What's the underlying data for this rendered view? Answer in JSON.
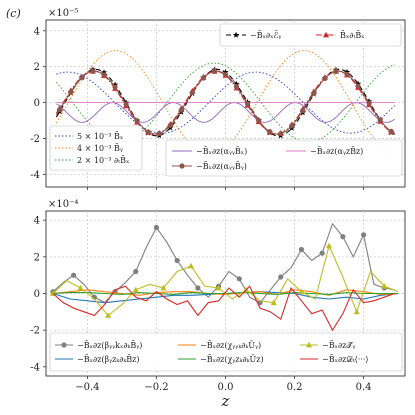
{
  "panel_tag": "(c)",
  "chart_data": [
    {
      "type": "line",
      "scale_label": "×10⁻⁵",
      "xlim": [
        -0.52,
        0.52
      ],
      "ylim": [
        -4.7,
        4.6
      ],
      "yticks": [
        -4,
        -2,
        0,
        2,
        4
      ],
      "xticks": [
        -0.4,
        -0.2,
        0.0,
        0.2,
        0.4
      ],
      "grid": true,
      "legend_top": "top-right",
      "legend_bottom_left": "bottom-left",
      "legend_bottom_right": "bottom-right",
      "series": [
        {
          "name": "−B̄ₓ∂ₓℰ̄ᵧ",
          "color": "#000000",
          "dash": "5,3",
          "marker": "star",
          "legend": "top",
          "amp": 1.85,
          "k": 17.8,
          "phase": -0.45
        },
        {
          "name": "B̄ₓ∂ₜB̄ₓ",
          "color": "#d62728",
          "dash": "6,2,1.5,2",
          "marker": "tri",
          "legend": "top",
          "amp": 1.75,
          "k": 17.8,
          "phase": -0.35
        },
        {
          "name": "5 × 10⁻³ B̄ₓ",
          "color": "#1f3fd6",
          "dash": "1.5,2",
          "marker": "none",
          "legend": "bl",
          "amp": 1.7,
          "k": 11.5,
          "phase": 1.2
        },
        {
          "name": "4 × 10⁻³ B̄ᵧ",
          "color": "#ff7f0e",
          "dash": "1.5,2",
          "marker": "none",
          "legend": "bl",
          "amp": 2.9,
          "k": 11.5,
          "phase": -0.4
        },
        {
          "name": "2 × 10⁻³ ∂ₜB̄ₓ",
          "color": "#2ca02c",
          "dash": "1.5,2",
          "marker": "none",
          "legend": "bl",
          "amp": 2.2,
          "k": 11.5,
          "phase": 2.6
        },
        {
          "name": "−B̄ₓ∂z(αᵧᵧB̄ₓ)",
          "color": "#9467bd",
          "dash": "",
          "marker": "none",
          "legend": "br",
          "amp": 1.0,
          "k": 35.6,
          "phase": 0.5
        },
        {
          "name": "−B̄ₓ∂z(αᵧzB̄z)",
          "color": "#e377c2",
          "dash": "",
          "marker": "none",
          "legend": "br",
          "amp": 0.0,
          "k": 1.0,
          "phase": 0.0
        },
        {
          "name": "−B̄ₓ∂z(αᵧᵧB̄ᵧ)",
          "color": "#8c564b",
          "dash": "",
          "marker": "dot",
          "legend": "br",
          "amp": 1.75,
          "k": 17.8,
          "phase": -0.4
        }
      ]
    },
    {
      "type": "line",
      "scale_label": "×10⁻⁴",
      "xlim": [
        -0.52,
        0.52
      ],
      "ylim": [
        -4.5,
        4.5
      ],
      "yticks": [
        -4,
        -2,
        0,
        2,
        4
      ],
      "xticks": [
        -0.4,
        -0.2,
        0.0,
        0.2,
        0.4
      ],
      "xtick_labels": [
        "−0.4",
        "−0.2",
        "0.0",
        "0.2",
        "0.4"
      ],
      "xlabel": "z",
      "grid": true,
      "legend": "bottom",
      "series": [
        {
          "name": "−B̄ₓ∂z(βᵧᵧkₓ∂ₖB̄ᵧ)",
          "color": "#7f7f7f",
          "marker": "dot",
          "x": [
            -0.5,
            -0.47,
            -0.44,
            -0.41,
            -0.38,
            -0.35,
            -0.32,
            -0.29,
            -0.26,
            -0.23,
            -0.2,
            -0.17,
            -0.14,
            -0.11,
            -0.08,
            -0.05,
            -0.02,
            0.01,
            0.04,
            0.07,
            0.1,
            0.13,
            0.16,
            0.19,
            0.22,
            0.25,
            0.28,
            0.31,
            0.34,
            0.37,
            0.4,
            0.43,
            0.46,
            0.49
          ],
          "y": [
            0.1,
            0.6,
            1.0,
            0.5,
            -0.2,
            -0.5,
            0.1,
            0.6,
            1.2,
            2.5,
            3.6,
            2.8,
            1.8,
            1.0,
            0.3,
            -0.2,
            0.4,
            1.2,
            0.8,
            -0.2,
            -0.5,
            0.2,
            0.9,
            1.4,
            2.4,
            1.8,
            2.2,
            3.8,
            3.1,
            2.0,
            3.2,
            0.5,
            0.3,
            0.2
          ]
        },
        {
          "name": "−B̄ₓ∂z(βᵧzₖ∂ₖB̄z)",
          "color": "#1f77b4",
          "marker": "none",
          "x": [
            -0.5,
            -0.45,
            -0.4,
            -0.35,
            -0.3,
            -0.25,
            -0.2,
            -0.15,
            -0.1,
            -0.05,
            0.0,
            0.05,
            0.1,
            0.15,
            0.2,
            0.25,
            0.3,
            0.35,
            0.4,
            0.45,
            0.5
          ],
          "y": [
            0.0,
            -0.3,
            -0.4,
            -0.5,
            -0.4,
            -0.3,
            -0.2,
            -0.1,
            -0.1,
            -0.05,
            0.0,
            0.05,
            0.1,
            0.05,
            0.0,
            -0.2,
            -0.3,
            -0.2,
            -0.3,
            -0.1,
            0.0
          ]
        },
        {
          "name": "−B̄ₓ∂z(χᵧᵧₖ∂ₖŪᵧ)",
          "color": "#ff7f0e",
          "marker": "none",
          "x": [
            -0.5,
            -0.45,
            -0.4,
            -0.35,
            -0.3,
            -0.25,
            -0.2,
            -0.15,
            -0.1,
            -0.05,
            0.0,
            0.05,
            0.1,
            0.15,
            0.2,
            0.25,
            0.3,
            0.35,
            0.4,
            0.45,
            0.5
          ],
          "y": [
            0.0,
            0.1,
            0.2,
            0.1,
            0.0,
            -0.1,
            0.05,
            0.1,
            0.1,
            0.0,
            -0.05,
            0.05,
            0.1,
            -0.05,
            0.2,
            0.1,
            -0.1,
            0.2,
            0.1,
            -0.05,
            0.0
          ]
        },
        {
          "name": "−B̄ₓ∂z(χᵧzₖ∂ₖŪz)",
          "color": "#2ca02c",
          "marker": "none",
          "x": [
            -0.5,
            -0.45,
            -0.4,
            -0.35,
            -0.3,
            -0.25,
            -0.2,
            -0.15,
            -0.1,
            -0.05,
            0.0,
            0.05,
            0.1,
            0.15,
            0.2,
            0.25,
            0.3,
            0.35,
            0.4,
            0.45,
            0.5
          ],
          "y": [
            0.0,
            0.05,
            0.05,
            0.0,
            -0.05,
            0.05,
            0.0,
            -0.05,
            0.05,
            0.0,
            0.0,
            0.05,
            0.0,
            -0.05,
            0.05,
            0.0,
            -0.05,
            0.05,
            0.0,
            0.0,
            0.0
          ]
        },
        {
          "name": "−B̄ₓ∂z𝒯̄ᵧ",
          "color": "#bcbd22",
          "marker": "tri",
          "x": [
            -0.5,
            -0.46,
            -0.42,
            -0.38,
            -0.34,
            -0.3,
            -0.26,
            -0.22,
            -0.18,
            -0.14,
            -0.1,
            -0.06,
            -0.02,
            0.02,
            0.06,
            0.1,
            0.14,
            0.18,
            0.22,
            0.26,
            0.3,
            0.34,
            0.38,
            0.42,
            0.46,
            0.5
          ],
          "y": [
            0.0,
            0.7,
            0.3,
            -0.3,
            -1.2,
            -0.6,
            0.2,
            0.5,
            0.3,
            1.2,
            1.5,
            0.4,
            0.3,
            -0.3,
            0.2,
            -0.4,
            -0.5,
            0.8,
            0.1,
            -0.3,
            2.6,
            0.9,
            -1.0,
            1.2,
            0.4,
            0.1
          ]
        },
        {
          "name": "−B̄ₓ∂z𝒟ₜ⟨···⟩",
          "color": "#d62728",
          "marker": "none",
          "x": [
            -0.5,
            -0.47,
            -0.44,
            -0.41,
            -0.38,
            -0.35,
            -0.32,
            -0.29,
            -0.26,
            -0.23,
            -0.2,
            -0.17,
            -0.14,
            -0.11,
            -0.08,
            -0.05,
            -0.02,
            0.01,
            0.04,
            0.07,
            0.1,
            0.13,
            0.16,
            0.19,
            0.22,
            0.25,
            0.28,
            0.31,
            0.34,
            0.37,
            0.4,
            0.43,
            0.46,
            0.49
          ],
          "y": [
            0.0,
            -0.5,
            -0.8,
            -1.0,
            -1.2,
            -0.6,
            0.2,
            0.4,
            -0.2,
            -0.4,
            0.1,
            -0.3,
            -0.6,
            -0.4,
            -1.2,
            -0.5,
            -0.4,
            0.3,
            -0.2,
            0.4,
            -0.8,
            -1.0,
            -1.4,
            0.3,
            -0.4,
            -1.1,
            -0.9,
            -2.0,
            -1.1,
            0.2,
            -0.5,
            -0.4,
            -0.2,
            0.0
          ]
        }
      ]
    }
  ]
}
